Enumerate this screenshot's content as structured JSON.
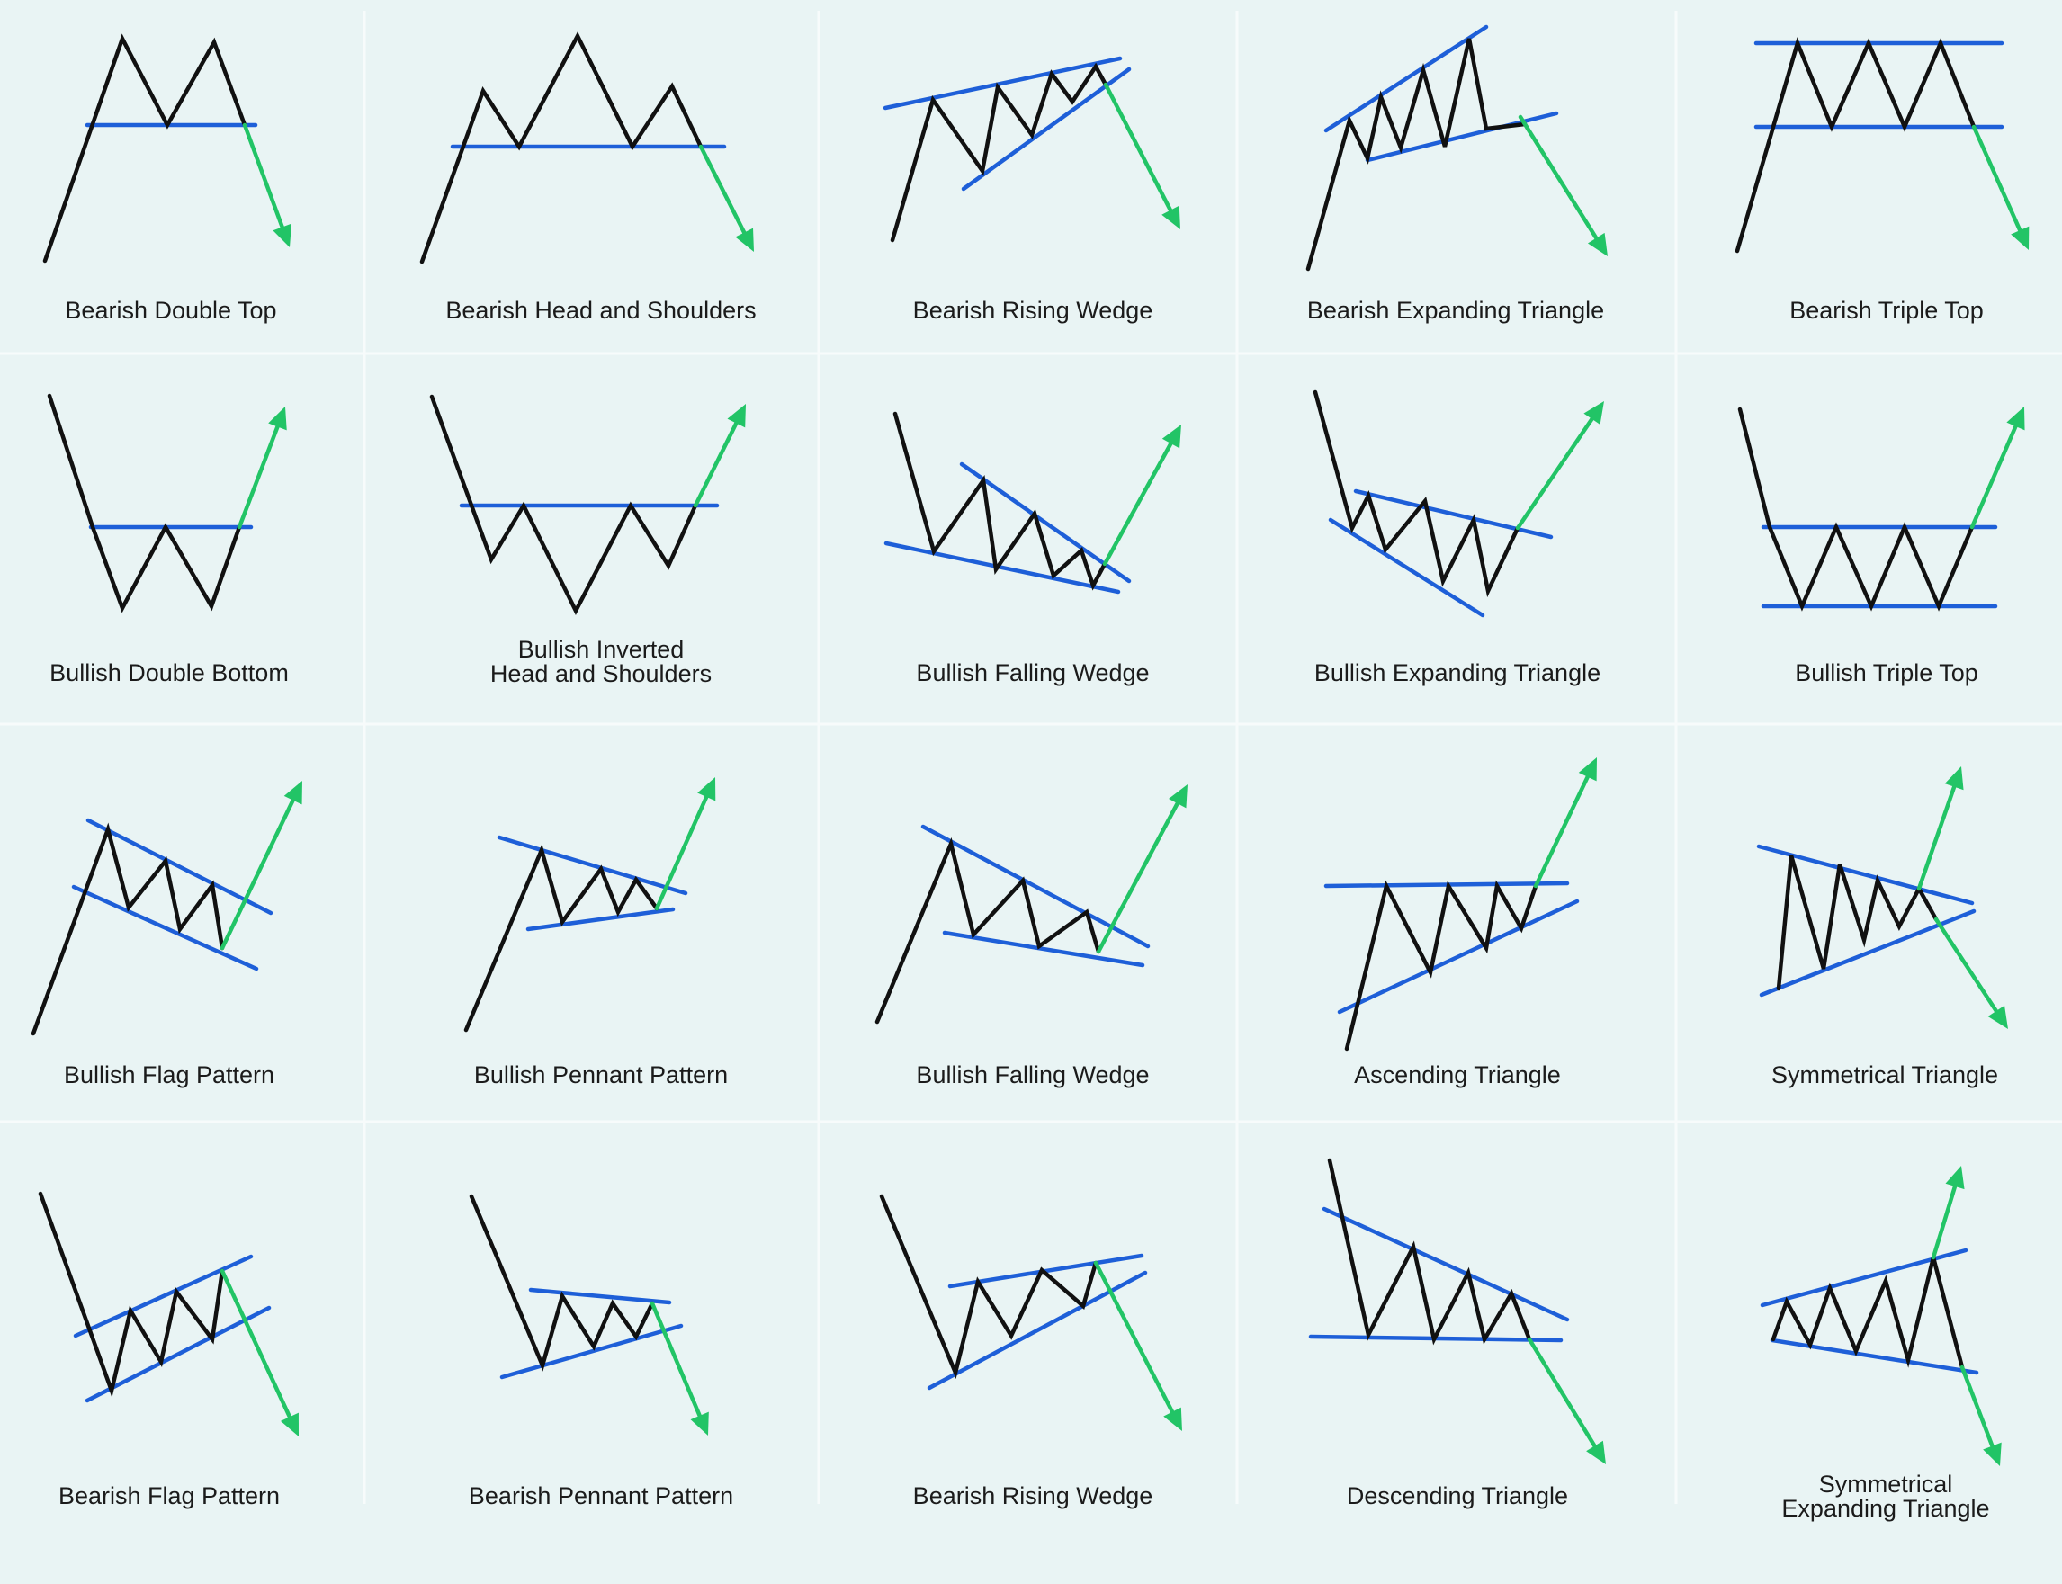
{
  "palette": {
    "background": "#e9f4f4",
    "divider": "#f7fbfb",
    "price": "#111111",
    "trendline": "#1e5fd8",
    "bullish_arrow": "#22c466",
    "bearish_arrow": "#22c466"
  },
  "patterns": [
    {
      "id": "bearish-double-top",
      "label": [
        "Bearish Double Top"
      ],
      "breakout": "down"
    },
    {
      "id": "bearish-head-and-shoulders",
      "label": [
        "Bearish Head and Shoulders"
      ],
      "breakout": "down"
    },
    {
      "id": "bearish-rising-wedge-1",
      "label": [
        "Bearish Rising Wedge"
      ],
      "breakout": "down"
    },
    {
      "id": "bearish-expanding-triangle",
      "label": [
        "Bearish Expanding Triangle"
      ],
      "breakout": "down"
    },
    {
      "id": "bearish-triple-top",
      "label": [
        "Bearish Triple Top"
      ],
      "breakout": "down"
    },
    {
      "id": "bullish-double-bottom",
      "label": [
        "Bullish Double Bottom"
      ],
      "breakout": "up"
    },
    {
      "id": "bullish-inverted-head-and-shoulders",
      "label": [
        "Bullish Inverted",
        "Head and Shoulders"
      ],
      "breakout": "up"
    },
    {
      "id": "bullish-falling-wedge-1",
      "label": [
        "Bullish Falling Wedge"
      ],
      "breakout": "up"
    },
    {
      "id": "bullish-expanding-triangle",
      "label": [
        "Bullish Expanding Triangle"
      ],
      "breakout": "up"
    },
    {
      "id": "bullish-triple-top",
      "label": [
        "Bullish Triple Top"
      ],
      "breakout": "up"
    },
    {
      "id": "bullish-flag-pattern",
      "label": [
        "Bullish Flag Pattern"
      ],
      "breakout": "up"
    },
    {
      "id": "bullish-pennant-pattern",
      "label": [
        "Bullish Pennant Pattern"
      ],
      "breakout": "up"
    },
    {
      "id": "bullish-falling-wedge-2",
      "label": [
        "Bullish Falling Wedge"
      ],
      "breakout": "up"
    },
    {
      "id": "ascending-triangle",
      "label": [
        "Ascending Triangle"
      ],
      "breakout": "up"
    },
    {
      "id": "symmetrical-triangle",
      "label": [
        "Symmetrical Triangle"
      ],
      "breakout": "both"
    },
    {
      "id": "bearish-flag-pattern",
      "label": [
        "Bearish Flag Pattern"
      ],
      "breakout": "down"
    },
    {
      "id": "bearish-pennant-pattern",
      "label": [
        "Bearish Pennant Pattern"
      ],
      "breakout": "down"
    },
    {
      "id": "bearish-rising-wedge-2",
      "label": [
        "Bearish Rising Wedge"
      ],
      "breakout": "down"
    },
    {
      "id": "descending-triangle",
      "label": [
        "Descending Triangle"
      ],
      "breakout": "down"
    },
    {
      "id": "symmetrical-expanding-triangle",
      "label": [
        "Symmetrical",
        "Expanding Triangle"
      ],
      "breakout": "both"
    }
  ]
}
